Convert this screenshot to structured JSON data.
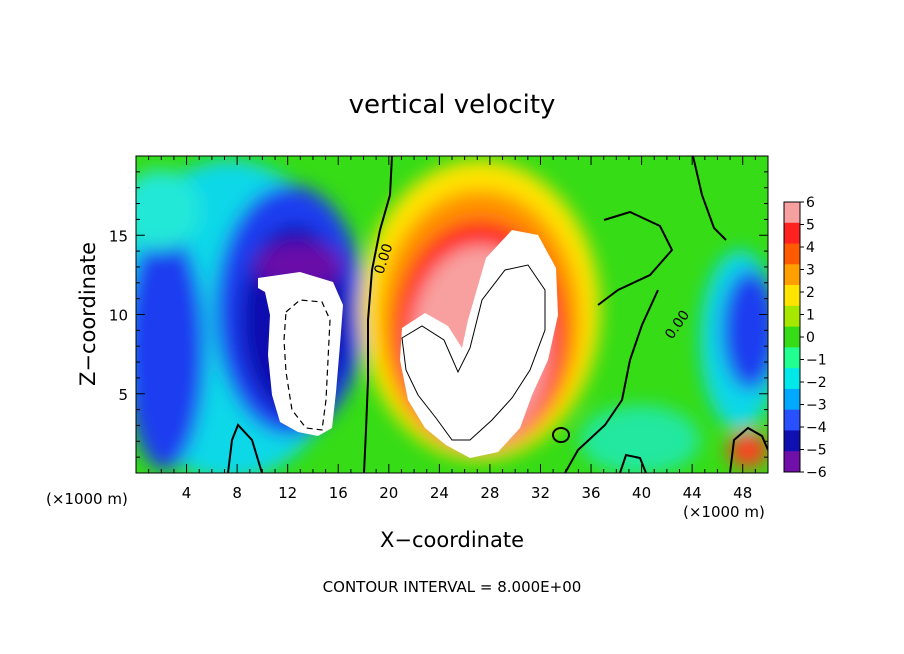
{
  "chart_data": {
    "type": "heatmap",
    "title": "vertical velocity",
    "xlabel": "X−coordinate",
    "ylabel": "Z−coordinate",
    "x_unit_left": "(×1000 m)",
    "x_unit_right": "(×1000 m)",
    "xlim": [
      0,
      50
    ],
    "ylim": [
      0,
      20
    ],
    "x_ticks": [
      4,
      8,
      12,
      16,
      20,
      24,
      28,
      32,
      36,
      40,
      44,
      48
    ],
    "y_ticks": [
      5,
      10,
      15
    ],
    "colorbar": {
      "ticks": [
        "6",
        "5",
        "4",
        "3",
        "2",
        "1",
        "0",
        "−1",
        "−2",
        "−3",
        "−4",
        "−5",
        "−6"
      ],
      "range": [
        -6,
        6
      ],
      "colors": [
        "#f7a0a0",
        "#ff2020",
        "#ff5a00",
        "#ffa000",
        "#ffe400",
        "#a8e800",
        "#36dc16",
        "#20ff90",
        "#00e8e8",
        "#00a8ff",
        "#2850ff",
        "#1010b0",
        "#7010a8"
      ]
    },
    "contour_labels": [
      "0.00",
      "0.00"
    ],
    "footer": "CONTOUR INTERVAL = 8.000E+00"
  }
}
